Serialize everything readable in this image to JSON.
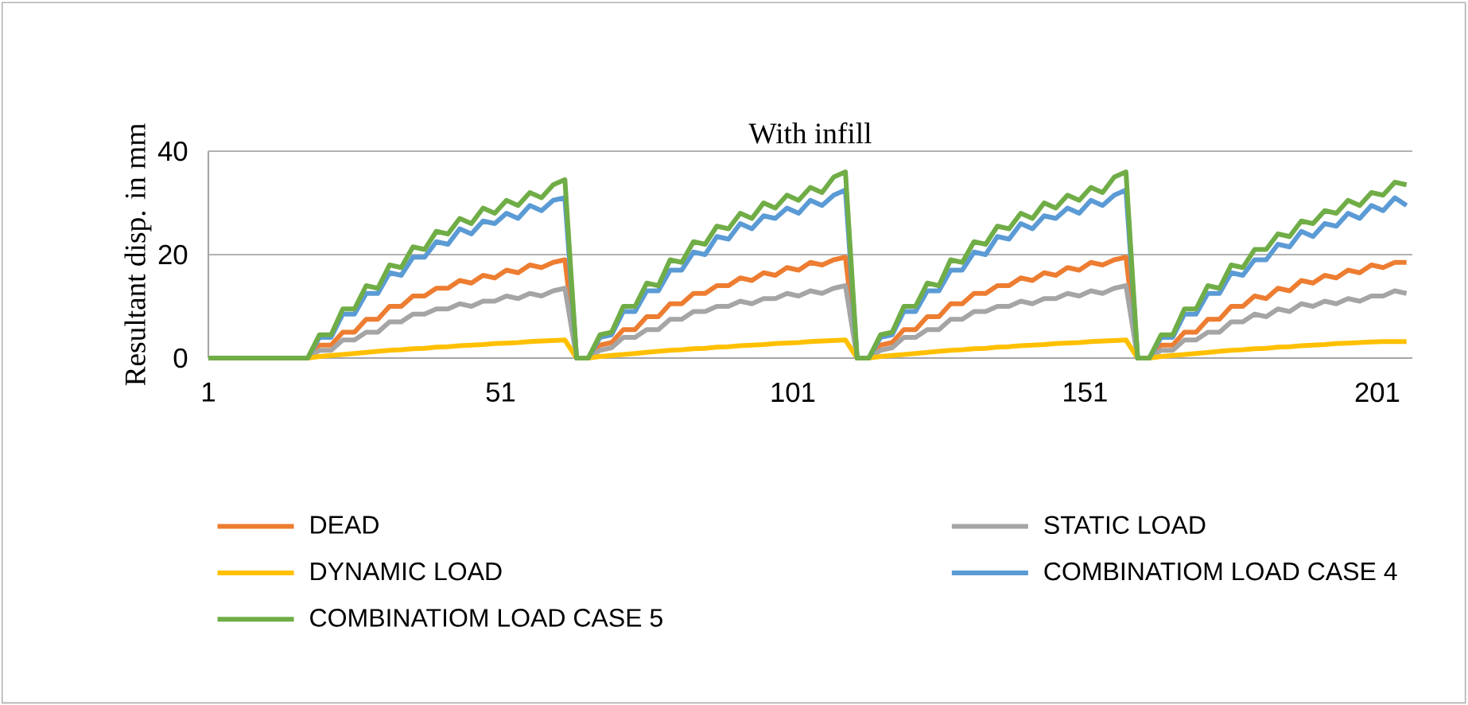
{
  "chart_data": {
    "type": "line",
    "title": "With infill",
    "ylabel": "Resultant disp. in mm",
    "x": [
      1,
      18,
      20,
      22,
      24,
      26,
      28,
      30,
      32,
      34,
      36,
      38,
      40,
      42,
      44,
      46,
      48,
      50,
      52,
      54,
      56,
      58,
      60,
      62,
      64,
      66,
      68,
      70,
      72,
      74,
      76,
      78,
      80,
      82,
      84,
      86,
      88,
      90,
      92,
      94,
      96,
      98,
      100,
      102,
      104,
      106,
      108,
      110,
      112,
      114,
      116,
      118,
      120,
      122,
      124,
      126,
      128,
      130,
      132,
      134,
      136,
      138,
      140,
      142,
      144,
      146,
      148,
      150,
      152,
      154,
      156,
      158,
      160,
      162,
      164,
      166,
      168,
      170,
      172,
      174,
      176,
      178,
      180,
      182,
      184,
      186,
      188,
      190,
      192,
      194,
      196,
      198,
      200,
      202,
      204,
      206
    ],
    "series": [
      {
        "name": "DEAD",
        "color": "#ed7d31",
        "values": [
          0,
          0,
          2.5,
          2.5,
          5,
          5,
          7.5,
          7.5,
          10,
          10,
          12,
          12,
          13.5,
          13.5,
          15,
          14.5,
          16,
          15.5,
          17,
          16.5,
          18,
          17.5,
          18.5,
          19,
          0,
          0,
          2.5,
          3,
          5.5,
          5.5,
          8,
          8,
          10.5,
          10.5,
          12.5,
          12.5,
          14,
          14,
          15.5,
          15,
          16.5,
          16,
          17.5,
          17,
          18.5,
          18,
          19,
          19.5,
          0,
          0,
          2.5,
          3,
          5.5,
          5.5,
          8,
          8,
          10.5,
          10.5,
          12.5,
          12.5,
          14,
          14,
          15.5,
          15,
          16.5,
          16,
          17.5,
          17,
          18.5,
          18,
          19,
          19.5,
          0,
          0,
          2.5,
          2.5,
          5,
          5,
          7.5,
          7.5,
          10,
          10,
          12,
          11.5,
          13.5,
          13,
          15,
          14.5,
          16,
          15.5,
          17,
          16.5,
          18,
          17.5,
          18.5,
          18.5
        ]
      },
      {
        "name": "STATIC LOAD",
        "color": "#a5a5a5",
        "values": [
          0,
          0,
          1.5,
          1.5,
          3.5,
          3.5,
          5,
          5,
          7,
          7,
          8.5,
          8.5,
          9.5,
          9.5,
          10.5,
          10,
          11,
          11,
          12,
          11.5,
          12.5,
          12,
          13,
          13.5,
          0,
          0,
          1.5,
          2,
          4,
          4,
          5.5,
          5.5,
          7.5,
          7.5,
          9,
          9,
          10,
          10,
          11,
          10.5,
          11.5,
          11.5,
          12.5,
          12,
          13,
          12.5,
          13.5,
          14,
          0,
          0,
          1.5,
          2,
          4,
          4,
          5.5,
          5.5,
          7.5,
          7.5,
          9,
          9,
          10,
          10,
          11,
          10.5,
          11.5,
          11.5,
          12.5,
          12,
          13,
          12.5,
          13.5,
          14,
          0,
          0,
          1.5,
          1.5,
          3.5,
          3.5,
          5,
          5,
          7,
          7,
          8.5,
          8,
          9.5,
          9,
          10.5,
          10,
          11,
          10.5,
          11.5,
          11,
          12,
          12,
          13,
          12.5
        ]
      },
      {
        "name": "DYNAMIC LOAD",
        "color": "#ffc000",
        "values": [
          0,
          0,
          0.3,
          0.5,
          0.7,
          0.9,
          1.1,
          1.3,
          1.5,
          1.6,
          1.8,
          1.9,
          2.1,
          2.2,
          2.4,
          2.5,
          2.6,
          2.8,
          2.9,
          3,
          3.2,
          3.3,
          3.4,
          3.5,
          0,
          0,
          0.3,
          0.5,
          0.7,
          0.9,
          1.1,
          1.3,
          1.5,
          1.6,
          1.8,
          1.9,
          2.1,
          2.2,
          2.4,
          2.5,
          2.6,
          2.8,
          2.9,
          3,
          3.2,
          3.3,
          3.4,
          3.5,
          0,
          0,
          0.3,
          0.5,
          0.7,
          0.9,
          1.1,
          1.3,
          1.5,
          1.6,
          1.8,
          1.9,
          2.1,
          2.2,
          2.4,
          2.5,
          2.6,
          2.8,
          2.9,
          3,
          3.2,
          3.3,
          3.4,
          3.5,
          0,
          0,
          0.3,
          0.5,
          0.7,
          0.9,
          1.1,
          1.3,
          1.5,
          1.6,
          1.8,
          1.9,
          2.1,
          2.2,
          2.4,
          2.5,
          2.6,
          2.8,
          2.9,
          3,
          3.1,
          3.2,
          3.2,
          3.2
        ]
      },
      {
        "name": "COMBINATIOM LOAD CASE 4",
        "color": "#5b9bd5",
        "values": [
          0,
          0,
          4,
          4,
          8.5,
          8.5,
          12.5,
          12.5,
          16.5,
          16,
          19.5,
          19.5,
          22.5,
          22,
          25,
          24,
          26.5,
          26,
          28,
          27,
          29.5,
          28.5,
          30.5,
          31,
          0,
          0,
          4,
          4.5,
          9,
          9,
          13,
          13,
          17,
          17,
          20.5,
          20,
          23.5,
          23,
          26,
          25,
          27.5,
          27,
          29,
          28,
          30.5,
          29.5,
          31.5,
          32.5,
          0,
          0,
          4,
          4.5,
          9,
          9,
          13,
          13,
          17,
          17,
          20.5,
          20,
          23.5,
          23,
          26,
          25,
          27.5,
          27,
          29,
          28,
          30.5,
          29.5,
          31.5,
          32.5,
          0,
          0,
          4,
          4,
          8.5,
          8.5,
          12.5,
          12.5,
          16.5,
          16,
          19,
          19,
          22,
          21.5,
          24.5,
          23.5,
          26,
          25.5,
          28,
          27,
          29.5,
          28.5,
          31,
          29.5
        ]
      },
      {
        "name": "COMBINATIOM LOAD CASE 5",
        "color": "#70ad47",
        "values": [
          0,
          0,
          4.5,
          4.5,
          9.5,
          9.5,
          14,
          13.5,
          18,
          17.5,
          21.5,
          21,
          24.5,
          24,
          27,
          26,
          29,
          28,
          30.5,
          29.5,
          32,
          31,
          33.5,
          34.5,
          0,
          0,
          4.5,
          5,
          10,
          10,
          14.5,
          14,
          19,
          18.5,
          22.5,
          22,
          25.5,
          25,
          28,
          27,
          30,
          29,
          31.5,
          30.5,
          33,
          32,
          35,
          36,
          0,
          0,
          4.5,
          5,
          10,
          10,
          14.5,
          14,
          19,
          18.5,
          22.5,
          22,
          25.5,
          25,
          28,
          27,
          30,
          29,
          31.5,
          30.5,
          33,
          32,
          35,
          36,
          0,
          0,
          4.5,
          4.5,
          9.5,
          9.5,
          14,
          13.5,
          18,
          17.5,
          21,
          21,
          24,
          23.5,
          26.5,
          26,
          28.5,
          28,
          30.5,
          29.5,
          32,
          31.5,
          34,
          33.5
        ]
      }
    ],
    "xlim": [
      1,
      207
    ],
    "ylim": [
      0,
      40
    ],
    "xticks": [
      1,
      51,
      101,
      151,
      201
    ],
    "yticks": [
      0,
      20,
      40
    ],
    "grid": "y",
    "legend": "bottom"
  }
}
